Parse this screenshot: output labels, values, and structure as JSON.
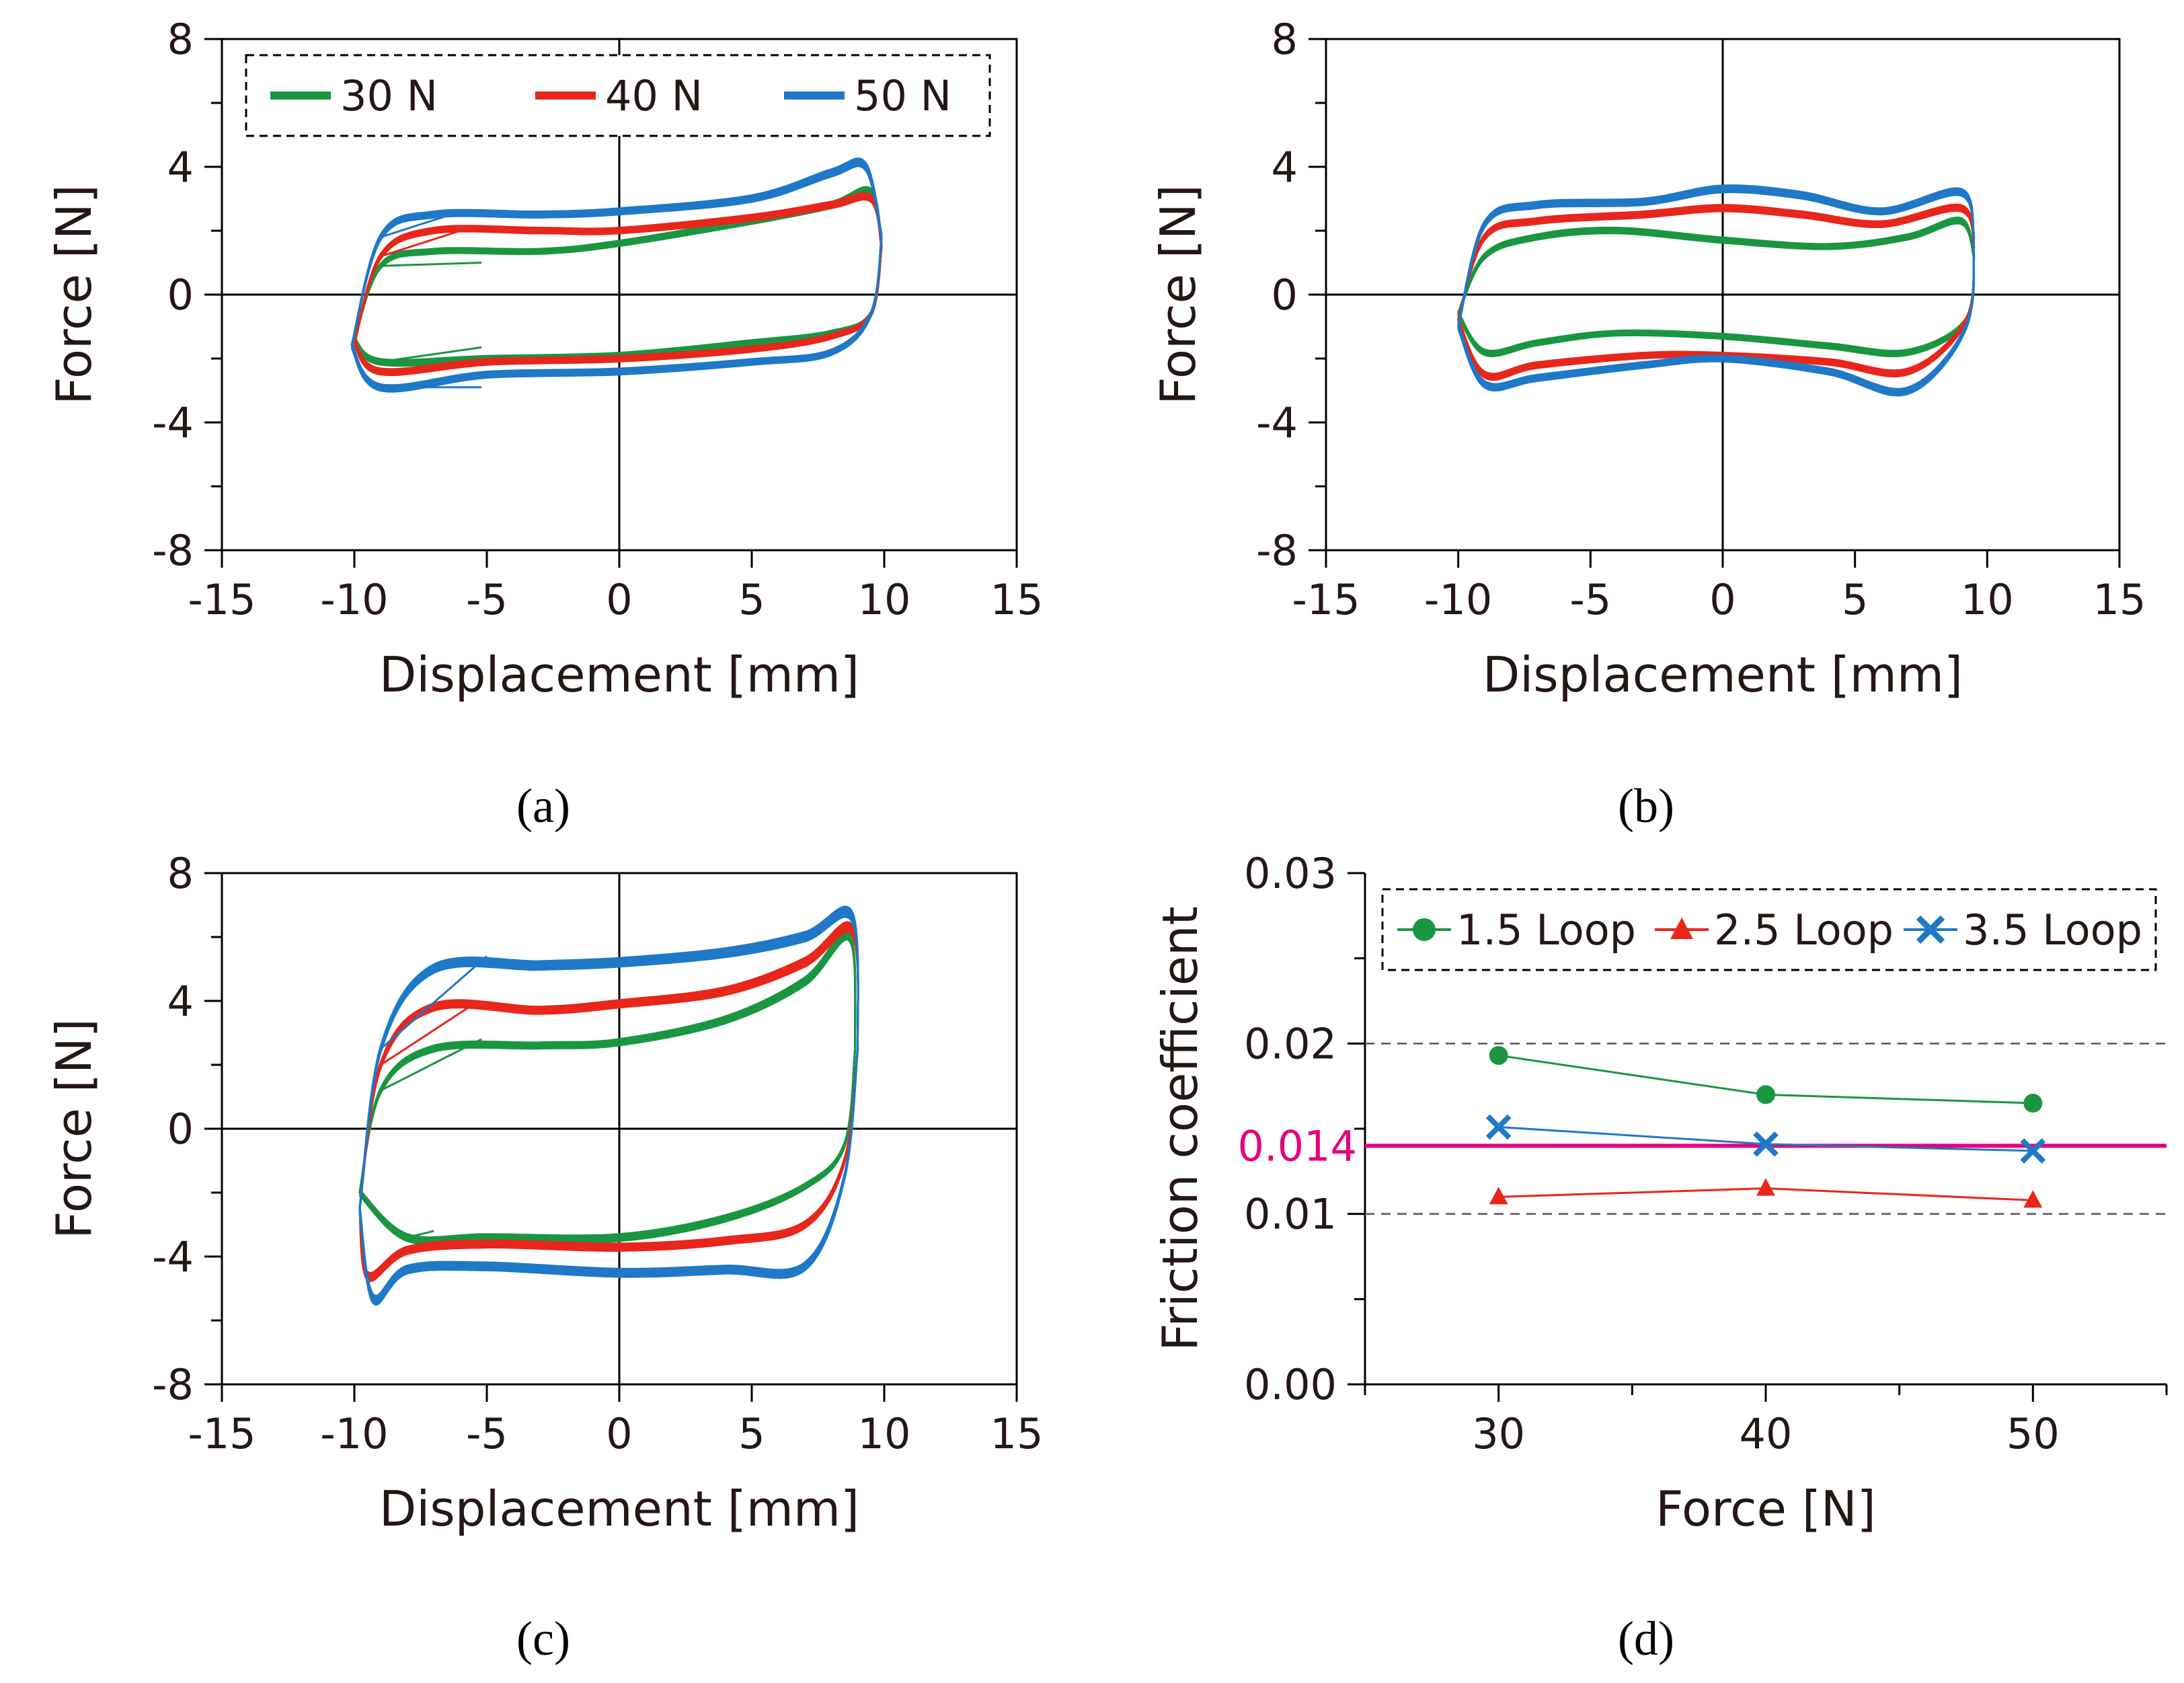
{
  "chart_data": [
    {
      "id": "a",
      "type": "line",
      "xlabel": "Displacement [mm]",
      "ylabel": "Force [N]",
      "xlim": [
        -15,
        15
      ],
      "ylim": [
        -8,
        8
      ],
      "xticks": [
        -15,
        -10,
        -5,
        0,
        5,
        10,
        15
      ],
      "yticks": [
        -8,
        -4,
        0,
        4,
        8
      ],
      "legend": {
        "placement": "top",
        "entries": [
          "30 N",
          "40 N",
          "50 N"
        ]
      },
      "series": [
        {
          "name": "30 N",
          "color": "#1a9641",
          "upper": [
            [
              -10,
              -1.4
            ],
            [
              -9,
              0.9
            ],
            [
              -7,
              1.35
            ],
            [
              -3,
              1.35
            ],
            [
              0,
              1.6
            ],
            [
              5,
              2.3
            ],
            [
              8,
              2.8
            ],
            [
              9.5,
              3.2
            ],
            [
              9.9,
              1.5
            ]
          ],
          "lower": [
            [
              9.9,
              1.5
            ],
            [
              9.5,
              -0.6
            ],
            [
              8,
              -1.2
            ],
            [
              5,
              -1.5
            ],
            [
              0,
              -1.9
            ],
            [
              -5,
              -2.0
            ],
            [
              -9,
              -2.1
            ],
            [
              -10,
              -1.4
            ]
          ],
          "start": [
            -5.2,
            1.0
          ],
          "end": [
            -5.2,
            -1.65
          ]
        },
        {
          "name": "40 N",
          "color": "#e8261c",
          "upper": [
            [
              -10,
              -1.5
            ],
            [
              -9,
              1.2
            ],
            [
              -7,
              2.0
            ],
            [
              -3,
              2.0
            ],
            [
              0,
              2.0
            ],
            [
              5,
              2.4
            ],
            [
              8,
              2.8
            ],
            [
              9.5,
              3.0
            ],
            [
              9.9,
              1.5
            ]
          ],
          "lower": [
            [
              9.9,
              1.5
            ],
            [
              9.5,
              -0.6
            ],
            [
              8,
              -1.3
            ],
            [
              5,
              -1.7
            ],
            [
              0,
              -2.0
            ],
            [
              -5,
              -2.1
            ],
            [
              -9,
              -2.4
            ],
            [
              -10,
              -1.5
            ]
          ],
          "start": [
            -6,
            2.0
          ],
          "end": [
            -6,
            -2.2
          ]
        },
        {
          "name": "50 N",
          "color": "#1f78c8",
          "upper": [
            [
              -10.1,
              -1.6
            ],
            [
              -9,
              1.8
            ],
            [
              -7,
              2.5
            ],
            [
              -3,
              2.5
            ],
            [
              0,
              2.6
            ],
            [
              5,
              3.0
            ],
            [
              8,
              3.8
            ],
            [
              9.3,
              4.0
            ],
            [
              9.9,
              1.8
            ]
          ],
          "lower": [
            [
              9.9,
              1.8
            ],
            [
              9.5,
              -0.6
            ],
            [
              8,
              -1.8
            ],
            [
              5,
              -2.1
            ],
            [
              0,
              -2.4
            ],
            [
              -5,
              -2.5
            ],
            [
              -9,
              -2.9
            ],
            [
              -10.1,
              -1.6
            ]
          ],
          "start": [
            -6,
            2.6
          ],
          "end": [
            -5.2,
            -2.9
          ]
        }
      ]
    },
    {
      "id": "b",
      "type": "line",
      "xlabel": "Displacement [mm]",
      "ylabel": "Force [N]",
      "xlim": [
        -15,
        15
      ],
      "ylim": [
        -8,
        8
      ],
      "xticks": [
        -15,
        -10,
        -5,
        0,
        5,
        10,
        15
      ],
      "yticks": [
        -8,
        -4,
        0,
        4,
        8
      ],
      "series": [
        {
          "name": "30 N",
          "color": "#1a9641",
          "upper": [
            [
              -10,
              -0.6
            ],
            [
              -9,
              1.2
            ],
            [
              -7,
              1.8
            ],
            [
              -4,
              2.0
            ],
            [
              0,
              1.7
            ],
            [
              4,
              1.5
            ],
            [
              7,
              1.8
            ],
            [
              9,
              2.3
            ],
            [
              9.5,
              1.2
            ]
          ],
          "lower": [
            [
              9.5,
              1.2
            ],
            [
              9.2,
              -0.8
            ],
            [
              7,
              -1.8
            ],
            [
              4,
              -1.6
            ],
            [
              0,
              -1.3
            ],
            [
              -4,
              -1.2
            ],
            [
              -7,
              -1.5
            ],
            [
              -9,
              -1.8
            ],
            [
              -10,
              -0.6
            ]
          ]
        },
        {
          "name": "40 N",
          "color": "#e8261c",
          "upper": [
            [
              -10,
              -0.8
            ],
            [
              -9,
              1.8
            ],
            [
              -7,
              2.3
            ],
            [
              -3,
              2.5
            ],
            [
              0,
              2.7
            ],
            [
              3,
              2.5
            ],
            [
              6,
              2.2
            ],
            [
              9,
              2.7
            ],
            [
              9.5,
              1.5
            ]
          ],
          "lower": [
            [
              9.5,
              1.5
            ],
            [
              9.2,
              -0.8
            ],
            [
              7,
              -2.4
            ],
            [
              4,
              -2.1
            ],
            [
              0,
              -1.9
            ],
            [
              -3,
              -1.9
            ],
            [
              -7,
              -2.2
            ],
            [
              -9,
              -2.5
            ],
            [
              -10,
              -0.8
            ]
          ]
        },
        {
          "name": "50 N",
          "color": "#1f78c8",
          "upper": [
            [
              -10,
              -1.0
            ],
            [
              -9,
              2.2
            ],
            [
              -7,
              2.8
            ],
            [
              -3,
              2.9
            ],
            [
              0,
              3.3
            ],
            [
              3,
              3.1
            ],
            [
              6,
              2.6
            ],
            [
              9,
              3.2
            ],
            [
              9.5,
              1.8
            ]
          ],
          "lower": [
            [
              9.5,
              1.8
            ],
            [
              9.2,
              -1.0
            ],
            [
              7,
              -3.0
            ],
            [
              4,
              -2.4
            ],
            [
              0,
              -2.0
            ],
            [
              -3,
              -2.2
            ],
            [
              -7,
              -2.6
            ],
            [
              -9,
              -2.8
            ],
            [
              -10,
              -1.0
            ]
          ]
        }
      ]
    },
    {
      "id": "c",
      "type": "line",
      "xlabel": "Displacement [mm]",
      "ylabel": "Force [N]",
      "xlim": [
        -15,
        15
      ],
      "ylim": [
        -8,
        8
      ],
      "xticks": [
        -15,
        -10,
        -5,
        0,
        5,
        10,
        15
      ],
      "yticks": [
        -8,
        -4,
        0,
        4,
        8
      ],
      "series": [
        {
          "name": "30 N",
          "color": "#1a9641",
          "upper": [
            [
              -9.8,
              -2.0
            ],
            [
              -9,
              1.2
            ],
            [
              -7,
              2.5
            ],
            [
              -3,
              2.6
            ],
            [
              0,
              2.7
            ],
            [
              4,
              3.4
            ],
            [
              7,
              4.6
            ],
            [
              8.7,
              6.0
            ],
            [
              8.9,
              2.5
            ]
          ],
          "lower": [
            [
              8.9,
              2.5
            ],
            [
              8.5,
              -0.5
            ],
            [
              7,
              -1.8
            ],
            [
              4,
              -2.8
            ],
            [
              0,
              -3.4
            ],
            [
              -5,
              -3.4
            ],
            [
              -8,
              -3.4
            ],
            [
              -9.8,
              -2.0
            ]
          ],
          "start": [
            -5.2,
            2.8
          ],
          "end": [
            -7,
            -3.2
          ]
        },
        {
          "name": "40 N",
          "color": "#e8261c",
          "upper": [
            [
              -9.8,
              -2.5
            ],
            [
              -9,
              2.0
            ],
            [
              -7,
              3.8
            ],
            [
              -3,
              3.7
            ],
            [
              0,
              3.9
            ],
            [
              4,
              4.3
            ],
            [
              7,
              5.2
            ],
            [
              8.8,
              6.2
            ],
            [
              9.0,
              2.5
            ]
          ],
          "lower": [
            [
              9.0,
              2.5
            ],
            [
              8.5,
              -1.0
            ],
            [
              7,
              -3.0
            ],
            [
              4,
              -3.5
            ],
            [
              0,
              -3.7
            ],
            [
              -5,
              -3.6
            ],
            [
              -8,
              -3.8
            ],
            [
              -9.5,
              -4.6
            ],
            [
              -9.8,
              -2.5
            ]
          ],
          "start": [
            -5.5,
            3.9
          ],
          "end": [
            -9.5,
            -4.6
          ]
        },
        {
          "name": "50 N",
          "color": "#1f78c8",
          "upper": [
            [
              -9.8,
              -2.5
            ],
            [
              -9,
              2.5
            ],
            [
              -7,
              5.0
            ],
            [
              -3,
              5.1
            ],
            [
              0,
              5.2
            ],
            [
              4,
              5.5
            ],
            [
              7,
              6.0
            ],
            [
              8.8,
              6.6
            ],
            [
              9.0,
              2.5
            ]
          ],
          "lower": [
            [
              9.0,
              2.5
            ],
            [
              8.5,
              -1.5
            ],
            [
              7,
              -4.3
            ],
            [
              4,
              -4.4
            ],
            [
              0,
              -4.5
            ],
            [
              -5,
              -4.3
            ],
            [
              -8,
              -4.4
            ],
            [
              -9.3,
              -5.3
            ],
            [
              -9.8,
              -2.5
            ]
          ],
          "start": [
            -5,
            5.4
          ],
          "end": [
            -9.3,
            -5.3
          ]
        }
      ]
    },
    {
      "id": "d",
      "type": "line",
      "xlabel": "Force [N]",
      "ylabel": "Friction coefficient",
      "xlim": [
        25,
        55
      ],
      "ylim": [
        0,
        0.03
      ],
      "xticks": [
        30,
        40,
        50
      ],
      "yticks": [
        0,
        0.01,
        0.02,
        0.03
      ],
      "ytick_labels": [
        "0.00",
        "0.01",
        "0.02",
        "0.03"
      ],
      "grid": "dashed horizontal at 0.01 and 0.02",
      "legend": {
        "placement": "top",
        "entries": [
          "1.5 Loop",
          "2.5 Loop",
          "3.5 Loop"
        ]
      },
      "reference_line": {
        "value": 0.014,
        "label": "0.014",
        "color": "#e6007e"
      },
      "x": [
        30,
        40,
        50
      ],
      "series": [
        {
          "name": "1.5 Loop",
          "color": "#1a9641",
          "marker": "circle",
          "values": [
            0.0193,
            0.017,
            0.0165
          ]
        },
        {
          "name": "2.5 Loop",
          "color": "#e8261c",
          "marker": "triangle",
          "values": [
            0.011,
            0.0115,
            0.0108
          ]
        },
        {
          "name": "3.5 Loop",
          "color": "#1f78c8",
          "marker": "x",
          "values": [
            0.0151,
            0.0141,
            0.0137
          ]
        }
      ]
    }
  ],
  "panel_labels": [
    "(a)",
    "(b)",
    "(c)",
    "(d)"
  ]
}
